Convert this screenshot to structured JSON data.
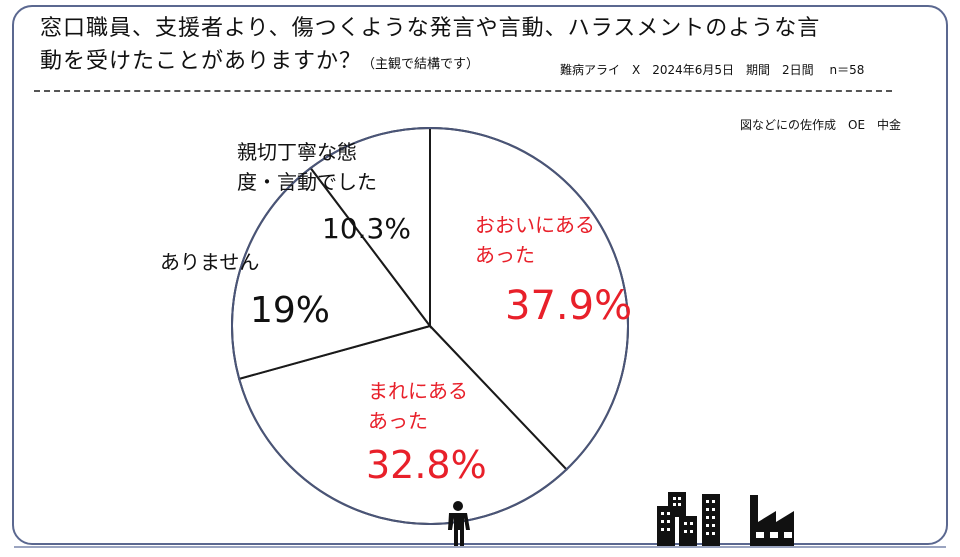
{
  "header": {
    "title_line1": "窓口職員、支援者より、傷つくような発言や言動、ハラスメントのような言",
    "title_line2": "動を受けたことがありますか？",
    "note": "（主観で結構です）",
    "meta": "難病アライ　X　2024年6月5日　期間　2日間　 n＝58",
    "credit": "図などにの佐作成　OE　中金"
  },
  "chart_data": {
    "type": "pie",
    "title": "窓口職員、支援者より、傷つくような発言や言動、ハラスメントのような言動を受けたことがありますか？",
    "start": "top",
    "direction": "clockwise",
    "slices": [
      {
        "label_line1": "おおいにある",
        "label_line2": "あった",
        "value": 37.9,
        "value_label": "37.9%",
        "color": "#e8202a"
      },
      {
        "label_line1": "まれにある",
        "label_line2": "あった",
        "value": 32.8,
        "value_label": "32.8%",
        "color": "#e8202a"
      },
      {
        "label_line1": "ありません",
        "value": 19,
        "value_label": "19%",
        "color": "#111111"
      },
      {
        "label_line1": "親切丁寧な態",
        "label_line2": "度・言動でした",
        "value": 10.3,
        "value_label": "10.3%",
        "color": "#111111"
      }
    ]
  },
  "icons": [
    "person-icon",
    "buildings-icon",
    "factory-icon"
  ]
}
